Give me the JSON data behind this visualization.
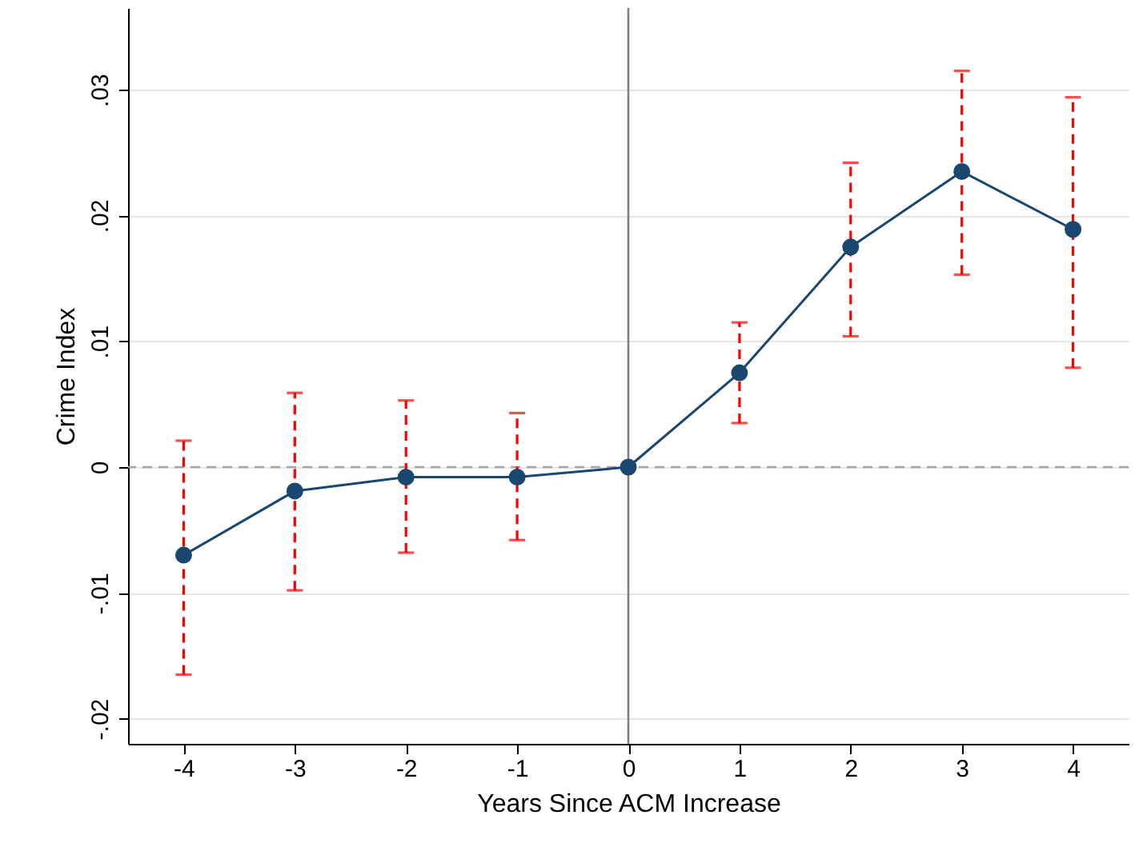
{
  "chart_data": {
    "type": "line",
    "xlabel": "Years Since ACM Increase",
    "ylabel": "Crime Index",
    "x": [
      -4,
      -3,
      -2,
      -1,
      0,
      1,
      2,
      3,
      4
    ],
    "series": [
      {
        "color": "#1a476f",
        "values": [
          -0.007,
          -0.0019,
          -0.0008,
          -0.0008,
          0,
          0.0075,
          0.0175,
          0.0235,
          0.0189
        ],
        "errors": [
          [
            -0.0165,
            0.0021
          ],
          [
            -0.0098,
            0.0059
          ],
          [
            -0.0068,
            0.0053
          ],
          [
            -0.0058,
            0.0043
          ],
          null,
          [
            0.0035,
            0.0115
          ],
          [
            0.0104,
            0.0242
          ],
          [
            0.0153,
            0.0315
          ],
          [
            0.0079,
            0.0294
          ]
        ]
      }
    ],
    "xlim": [
      -4.5,
      4.5
    ],
    "xticks": [
      -4,
      -3,
      -2,
      -1,
      0,
      1,
      2,
      3,
      4
    ],
    "ylim": [
      -0.022,
      0.0365
    ],
    "yticks": [
      {
        "value": -0.02,
        "label": "-.02"
      },
      {
        "value": -0.01,
        "label": "-.01"
      },
      0,
      {
        "value": 0.01,
        "label": ".01"
      },
      {
        "value": 0.02,
        "label": ".02"
      },
      {
        "value": 0.03,
        "label": ".03"
      }
    ],
    "ref_lines": [
      {
        "axis": "x",
        "value": 0,
        "color": "#7f7f7f",
        "line_style": "solid"
      },
      {
        "axis": "y",
        "value": 0,
        "color": "#a6a6a6",
        "line_style": "dashed"
      }
    ],
    "grid": "y",
    "marker": "circle",
    "line_style": "solid"
  }
}
